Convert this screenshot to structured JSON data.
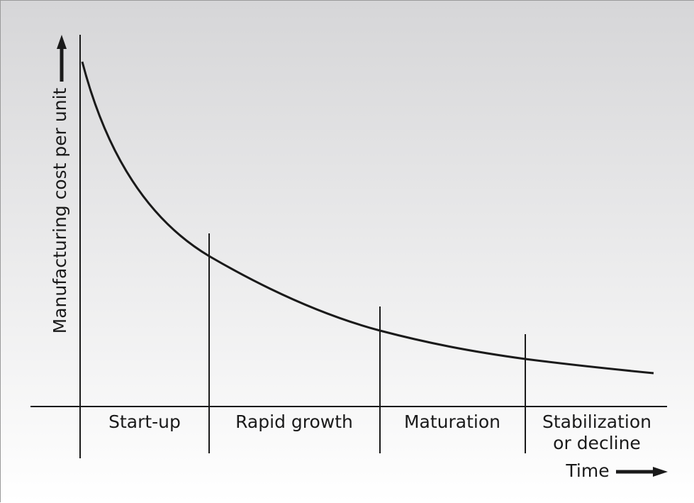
{
  "chart_data": {
    "type": "line",
    "ylabel": "Manufacturing cost per unit",
    "xlabel": "Time",
    "stages": [
      {
        "label_lines": [
          "Start-up"
        ]
      },
      {
        "label_lines": [
          "Rapid growth"
        ]
      },
      {
        "label_lines": [
          "Maturation"
        ]
      },
      {
        "label_lines": [
          "Stabilization",
          "or decline"
        ]
      }
    ],
    "grid": false
  },
  "colors": {
    "background_top": "#d6d6d8",
    "background_bottom": "#ffffff",
    "ink": "#1a1a1a"
  }
}
